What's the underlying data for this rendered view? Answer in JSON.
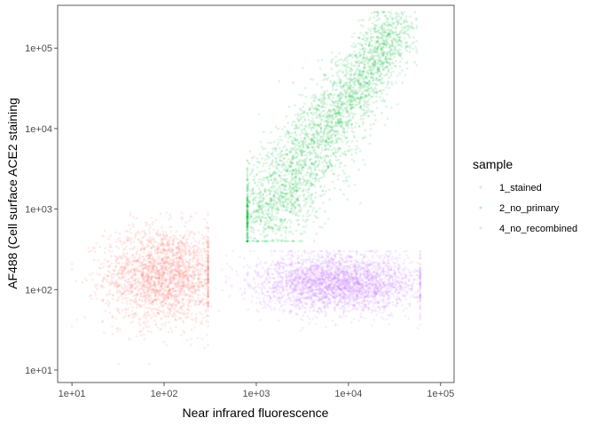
{
  "chart_data": {
    "type": "scatter",
    "title": "",
    "xlabel": "Near infrared fluorescence",
    "ylabel": "AF488 (Cell surface ACE2 staining",
    "x_scale": "log10",
    "y_scale": "log10",
    "xlim": [
      7,
      140000
    ],
    "ylim": [
      7,
      340000
    ],
    "x_ticks": [
      10,
      100,
      1000,
      10000,
      100000
    ],
    "x_tick_labels": [
      "1e+01",
      "1e+02",
      "1e+03",
      "1e+04",
      "1e+05"
    ],
    "y_ticks": [
      10,
      100,
      1000,
      10000,
      100000
    ],
    "y_tick_labels": [
      "1e+01",
      "1e+02",
      "1e+03",
      "1e+04",
      "1e+05"
    ],
    "grid": false,
    "legend": {
      "title": "sample",
      "position": "right"
    },
    "series": [
      {
        "name": "1_stained",
        "color": "#F8766D",
        "point_count": 2200,
        "x_center": 100,
        "x_log_sd": 0.32,
        "x_range": [
          10,
          300
        ],
        "y_center": 150,
        "y_log_sd": 0.3,
        "y_range": [
          12,
          900
        ]
      },
      {
        "name": "2_no_primary",
        "color": "#00BA38",
        "point_count": 3000,
        "diagonal": true,
        "x_range": [
          800,
          55000
        ],
        "y_range": [
          400,
          280000
        ],
        "x_at_y_low": 900,
        "y_low": 500,
        "x_at_y_high": 35000,
        "y_high": 200000
      },
      {
        "name": "4_no_recombined",
        "color": "#C77CFF",
        "point_count": 3000,
        "x_center": 8000,
        "x_log_sd": 0.45,
        "x_range": [
          300,
          60000
        ],
        "y_center": 120,
        "y_log_sd": 0.18,
        "y_range": [
          15,
          300
        ]
      }
    ]
  }
}
